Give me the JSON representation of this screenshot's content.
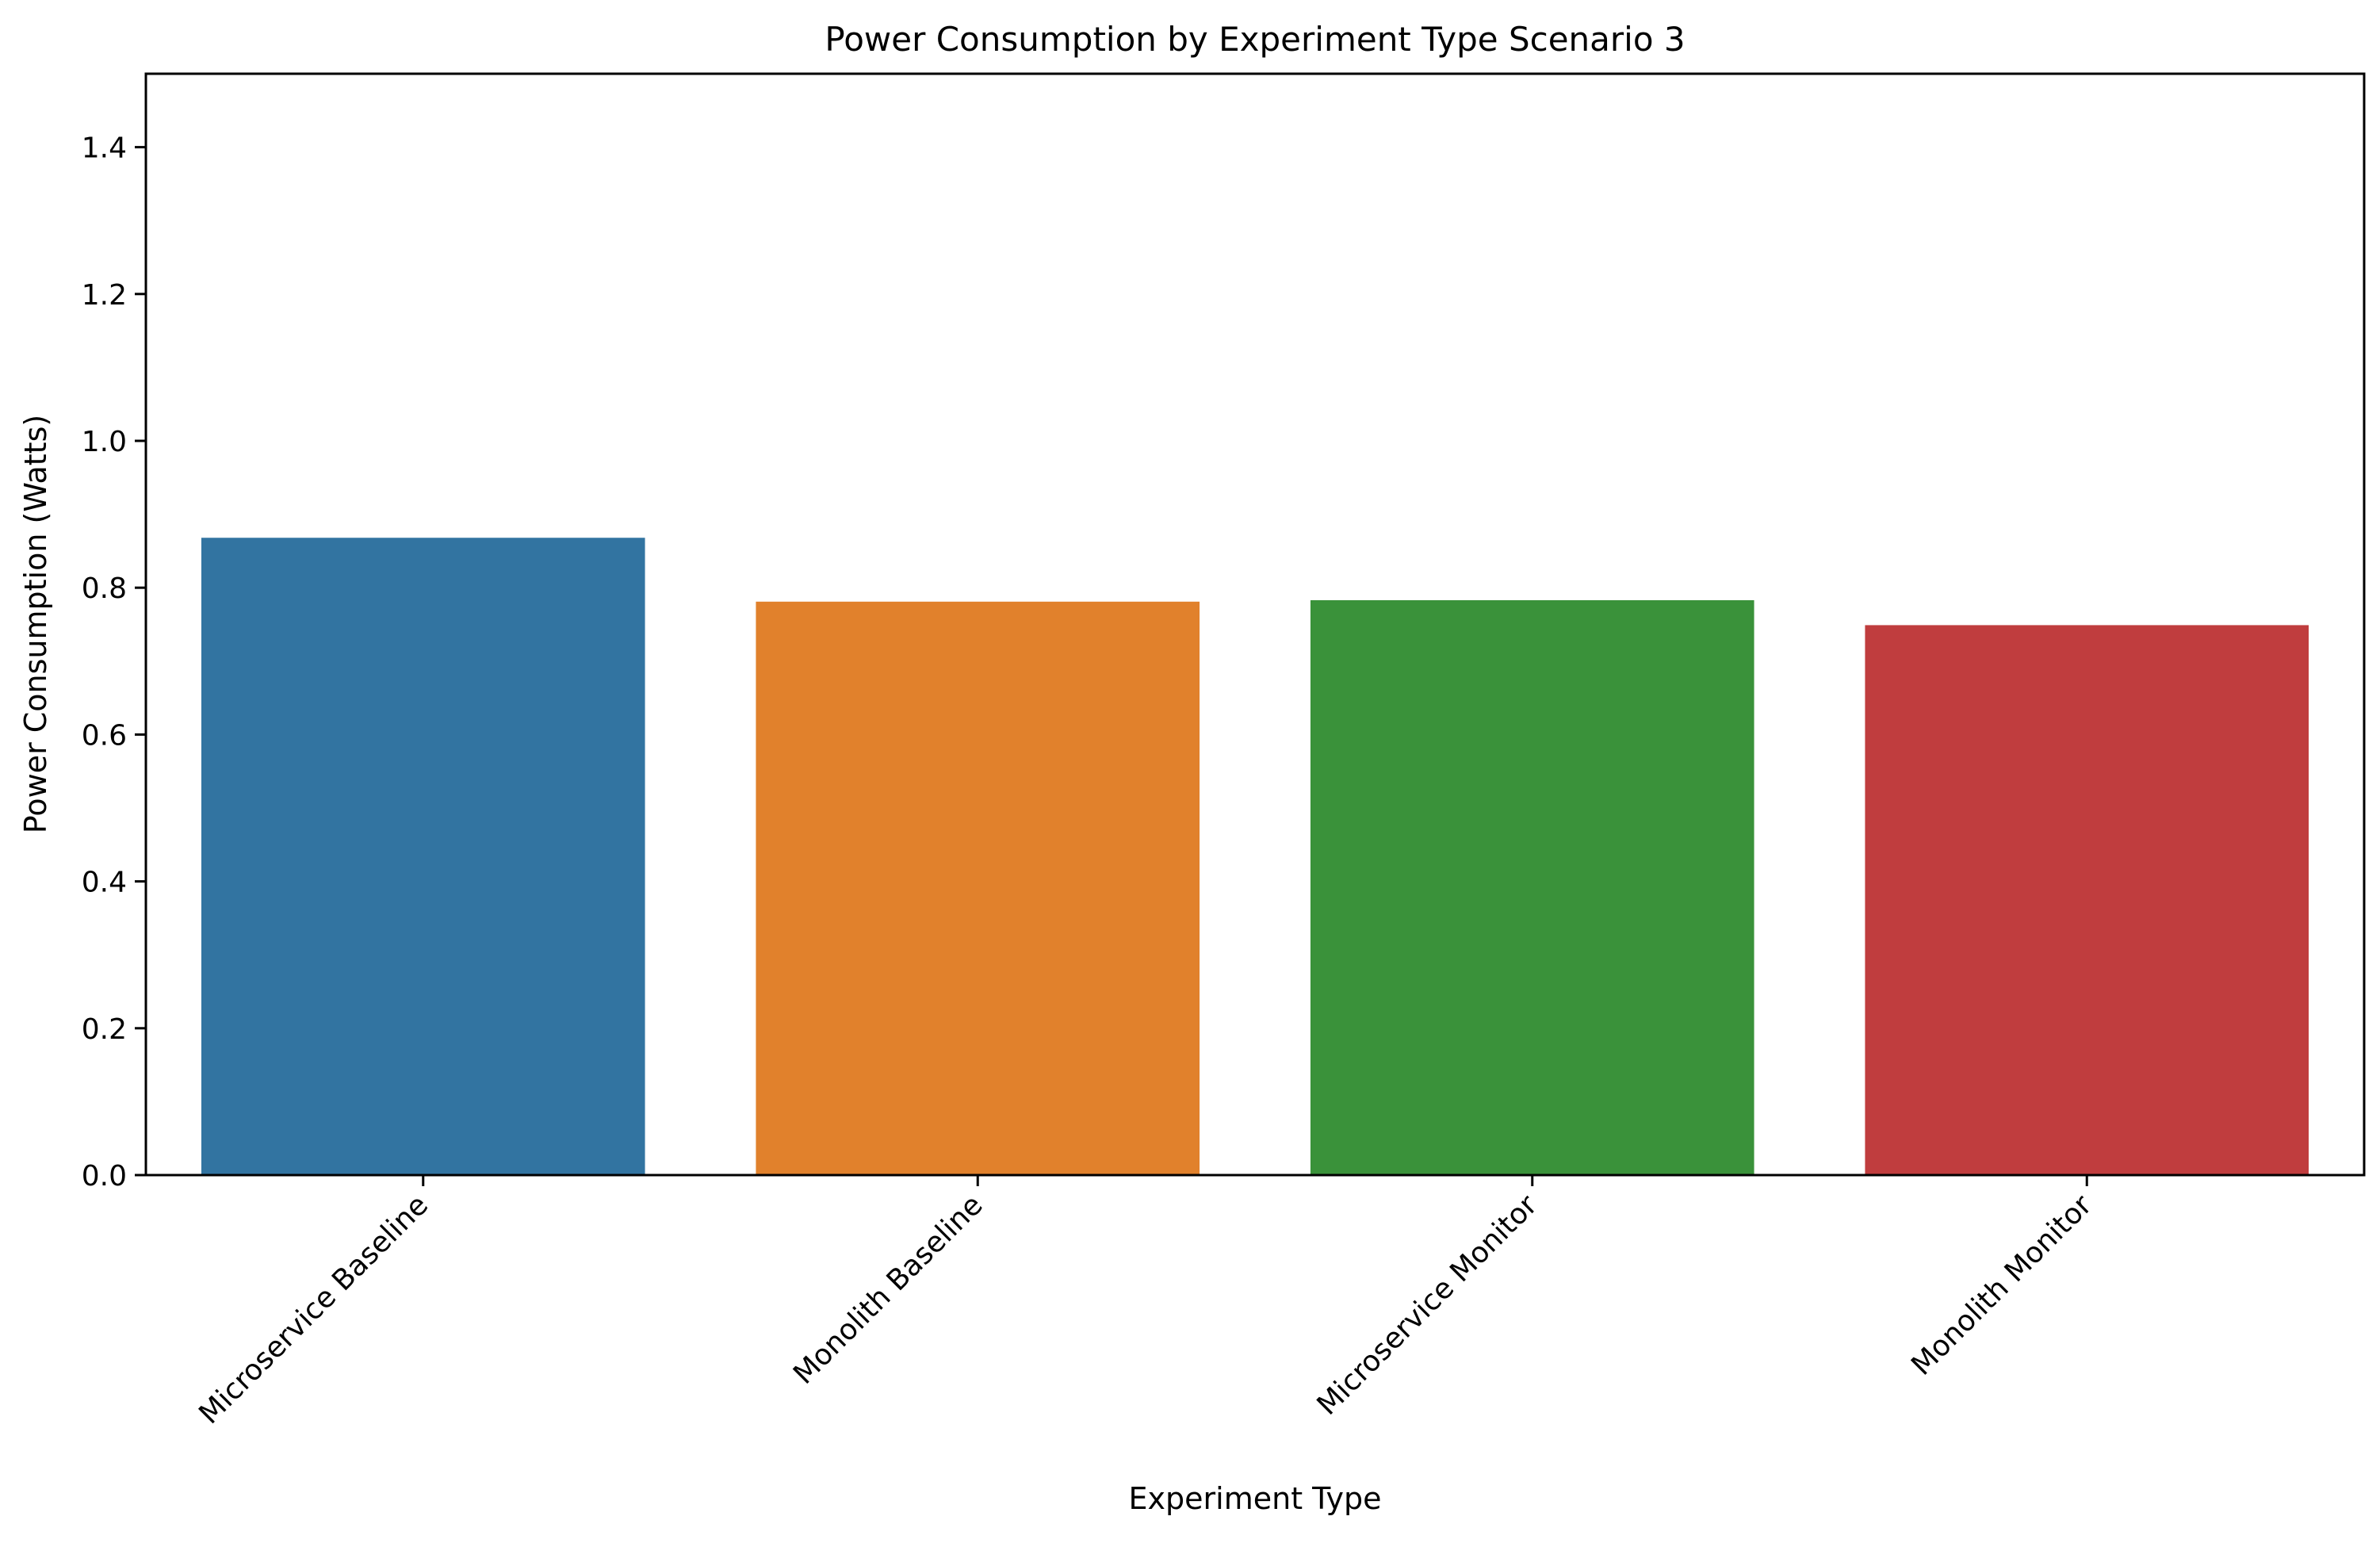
{
  "chart_data": {
    "type": "bar",
    "title": "Power Consumption by Experiment Type Scenario 3",
    "xlabel": "Experiment Type",
    "ylabel": "Power Consumption (Watts)",
    "categories": [
      "Microservice Baseline",
      "Monolith Baseline",
      "Microservice Monitor",
      "Monolith Monitor"
    ],
    "values": [
      0.868,
      0.781,
      0.783,
      0.749
    ],
    "colors": [
      "#3274a1",
      "#e1812c",
      "#3a923a",
      "#c03d3e"
    ],
    "ylim": [
      0,
      1.5
    ],
    "yticks": [
      "0.0",
      "0.2",
      "0.4",
      "0.6",
      "0.8",
      "1.0",
      "1.2",
      "1.4"
    ],
    "ytick_values": [
      0,
      0.2,
      0.4,
      0.6,
      0.8,
      1.0,
      1.2,
      1.4
    ],
    "grid": false,
    "legend": "none"
  }
}
